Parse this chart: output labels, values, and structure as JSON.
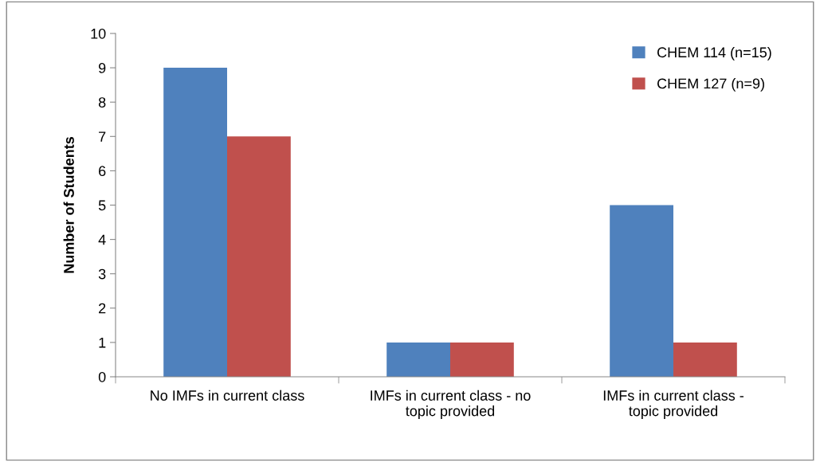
{
  "chart_data": {
    "type": "bar",
    "ylabel": "Number of Students",
    "categories": [
      "No IMFs in current class",
      "IMFs in current class - no topic provided",
      "IMFs in current class - topic provided"
    ],
    "series": [
      {
        "name": "CHEM 114 (n=15)",
        "color": "#4f81bd",
        "values": [
          9,
          1,
          5
        ]
      },
      {
        "name": "CHEM 127 (n=9)",
        "color": "#c0504d",
        "values": [
          7,
          1,
          1
        ]
      }
    ],
    "ylim": [
      0,
      10
    ],
    "yticks": [
      0,
      1,
      2,
      3,
      4,
      5,
      6,
      7,
      8,
      9,
      10
    ],
    "grid": false,
    "legend": "top right"
  }
}
